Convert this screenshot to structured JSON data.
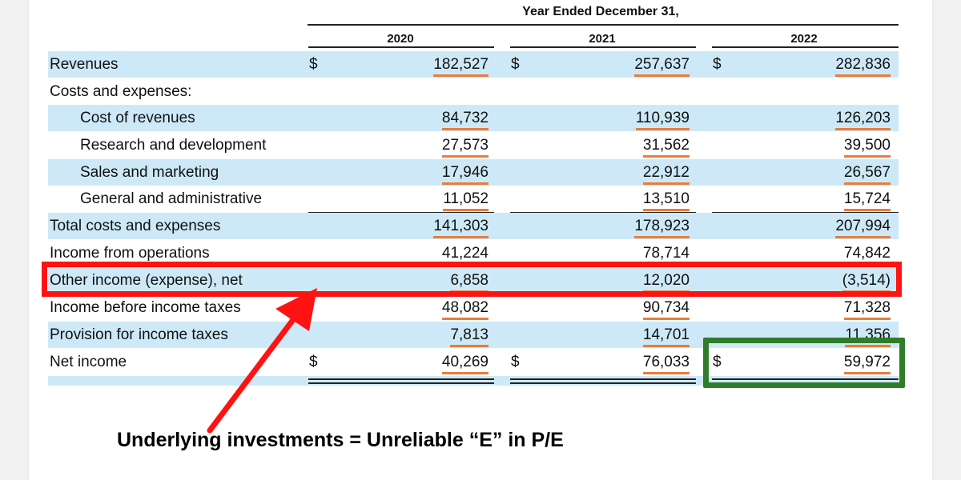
{
  "header": {
    "period": "Year Ended December 31,",
    "years": [
      "2020",
      "2021",
      "2022"
    ]
  },
  "currency_symbol": "$",
  "rows": [
    {
      "label": "Revenues",
      "values": [
        "182,527",
        "257,637",
        "282,836"
      ]
    },
    {
      "label": "Costs and expenses:",
      "values": [
        "",
        "",
        ""
      ]
    },
    {
      "label": "Cost of revenues",
      "values": [
        "84,732",
        "110,939",
        "126,203"
      ]
    },
    {
      "label": "Research and development",
      "values": [
        "27,573",
        "31,562",
        "39,500"
      ]
    },
    {
      "label": "Sales and marketing",
      "values": [
        "17,946",
        "22,912",
        "26,567"
      ]
    },
    {
      "label": "General and administrative",
      "values": [
        "11,052",
        "13,510",
        "15,724"
      ]
    },
    {
      "label": "Total costs and expenses",
      "values": [
        "141,303",
        "178,923",
        "207,994"
      ]
    },
    {
      "label": "Income from operations",
      "values": [
        "41,224",
        "78,714",
        "74,842"
      ]
    },
    {
      "label": "Other income (expense), net",
      "values": [
        "6,858",
        "12,020",
        "(3,514)"
      ]
    },
    {
      "label": "Income before income taxes",
      "values": [
        "48,082",
        "90,734",
        "71,328"
      ]
    },
    {
      "label": "Provision for income taxes",
      "values": [
        "7,813",
        "14,701",
        "11,356"
      ]
    },
    {
      "label": "Net income",
      "values": [
        "40,269",
        "76,033",
        "59,972"
      ]
    }
  ],
  "annotation": "Underlying investments = Unreliable “E” in P/E",
  "colors": {
    "row_shade": "#cde9f7",
    "highlight_red": "#ff1212",
    "highlight_green": "#2f7d2a",
    "underline_orange": "#ec7c3a"
  }
}
